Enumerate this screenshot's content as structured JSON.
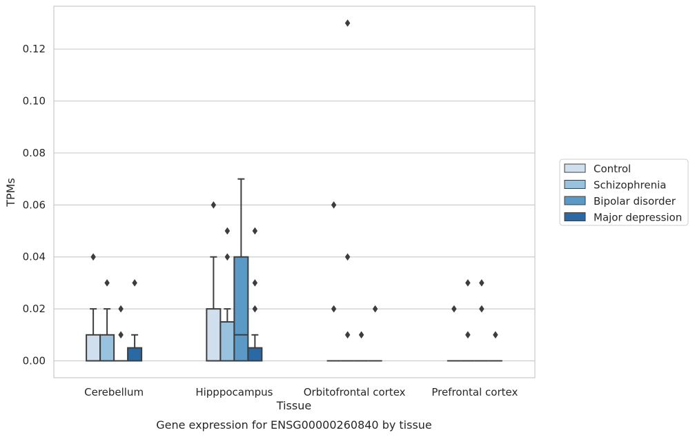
{
  "chart_data": {
    "type": "box",
    "title": "",
    "xlabel": "Tissue",
    "ylabel": "TPMs",
    "caption": "Gene expression for ENSG00000260840 by tissue",
    "categories": [
      "Cerebellum",
      "Hipppocampus",
      "Orbitofrontal cortex",
      "Prefrontal cortex"
    ],
    "ylim": [
      -0.0065,
      0.1365
    ],
    "yticks": [
      0.0,
      0.02,
      0.04,
      0.06,
      0.08,
      0.1,
      0.12
    ],
    "ytick_labels": [
      "0.00",
      "0.02",
      "0.04",
      "0.06",
      "0.08",
      "0.10",
      "0.12"
    ],
    "grid": "horizontal",
    "legend_position": "right",
    "series": [
      {
        "name": "Control",
        "color": "#d0dfed",
        "boxes": [
          {
            "q1": 0.0,
            "median": 0.0,
            "q3": 0.01,
            "whisker_low": 0.0,
            "whisker_high": 0.02,
            "outliers": [
              0.04
            ]
          },
          {
            "q1": 0.0,
            "median": 0.0,
            "q3": 0.02,
            "whisker_low": 0.0,
            "whisker_high": 0.04,
            "outliers": [
              0.06
            ]
          },
          {
            "q1": 0.0,
            "median": 0.0,
            "q3": 0.0,
            "whisker_low": 0.0,
            "whisker_high": 0.0,
            "outliers": [
              0.02,
              0.06
            ]
          },
          {
            "q1": 0.0,
            "median": 0.0,
            "q3": 0.0,
            "whisker_low": 0.0,
            "whisker_high": 0.0,
            "outliers": [
              0.02
            ]
          }
        ]
      },
      {
        "name": "Schizophrenia",
        "color": "#98c2dd",
        "boxes": [
          {
            "q1": 0.0,
            "median": 0.0,
            "q3": 0.01,
            "whisker_low": 0.0,
            "whisker_high": 0.02,
            "outliers": [
              0.03
            ]
          },
          {
            "q1": 0.0,
            "median": 0.0,
            "q3": 0.015,
            "whisker_low": 0.0,
            "whisker_high": 0.02,
            "outliers": [
              0.04,
              0.05
            ]
          },
          {
            "q1": 0.0,
            "median": 0.0,
            "q3": 0.0,
            "whisker_low": 0.0,
            "whisker_high": 0.0,
            "outliers": [
              0.01,
              0.04,
              0.13
            ]
          },
          {
            "q1": 0.0,
            "median": 0.0,
            "q3": 0.0,
            "whisker_low": 0.0,
            "whisker_high": 0.0,
            "outliers": [
              0.01,
              0.03
            ]
          }
        ]
      },
      {
        "name": "Bipolar disorder",
        "color": "#5b9ac6",
        "boxes": [
          {
            "q1": 0.0,
            "median": 0.0,
            "q3": 0.0,
            "whisker_low": 0.0,
            "whisker_high": 0.0,
            "outliers": [
              0.01,
              0.02
            ]
          },
          {
            "q1": 0.0,
            "median": 0.01,
            "q3": 0.04,
            "whisker_low": 0.0,
            "whisker_high": 0.07,
            "outliers": []
          },
          {
            "q1": 0.0,
            "median": 0.0,
            "q3": 0.0,
            "whisker_low": 0.0,
            "whisker_high": 0.0,
            "outliers": [
              0.01
            ]
          },
          {
            "q1": 0.0,
            "median": 0.0,
            "q3": 0.0,
            "whisker_low": 0.0,
            "whisker_high": 0.0,
            "outliers": [
              0.02,
              0.03
            ]
          }
        ]
      },
      {
        "name": "Major depression",
        "color": "#2a69a4",
        "boxes": [
          {
            "q1": 0.0,
            "median": 0.0,
            "q3": 0.005,
            "whisker_low": 0.0,
            "whisker_high": 0.01,
            "outliers": [
              0.03
            ]
          },
          {
            "q1": 0.0,
            "median": 0.0,
            "q3": 0.005,
            "whisker_low": 0.0,
            "whisker_high": 0.01,
            "outliers": [
              0.02,
              0.03,
              0.05
            ]
          },
          {
            "q1": 0.0,
            "median": 0.0,
            "q3": 0.0,
            "whisker_low": 0.0,
            "whisker_high": 0.0,
            "outliers": [
              0.02
            ]
          },
          {
            "q1": 0.0,
            "median": 0.0,
            "q3": 0.0,
            "whisker_low": 0.0,
            "whisker_high": 0.0,
            "outliers": [
              0.01
            ]
          }
        ]
      }
    ]
  }
}
